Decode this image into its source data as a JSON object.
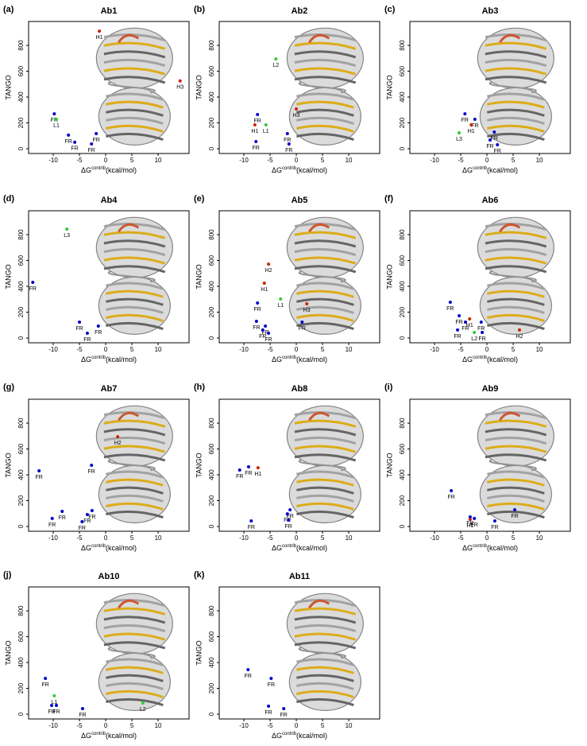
{
  "chart_data": [
    {
      "type": "scatter",
      "panel": "(a)",
      "title": "Ab1",
      "xlabel": "ΔG",
      "xlabel_sup": "contrib",
      "xlabel_unit": "(kcal/mol)",
      "ylabel": "TANGO",
      "x": [
        -1.2,
        14.2,
        -9.8,
        -9.4,
        -7.1,
        -5.9,
        -1.8,
        -2.7
      ],
      "values": [
        910,
        525,
        270,
        228,
        105,
        50,
        117,
        37
      ],
      "point_labels": [
        "H1",
        "H3",
        "FR",
        "L1",
        "FR",
        "FR",
        "FR",
        "FR"
      ],
      "point_colors": [
        "#cc2200",
        "#cc2200",
        "#0000cc",
        "#33cc33",
        "#0000cc",
        "#0000cc",
        "#0000cc",
        "#0000cc"
      ],
      "xlim": [
        -14.7,
        15.9
      ],
      "ylim": [
        -37,
        985
      ],
      "xticks": [
        -10,
        -5,
        0,
        5,
        10
      ],
      "yticks": [
        0,
        200,
        400,
        600,
        800
      ]
    },
    {
      "type": "scatter",
      "panel": "(b)",
      "title": "Ab2",
      "xlabel": "ΔG",
      "xlabel_sup": "contrib",
      "xlabel_unit": "(kcal/mol)",
      "ylabel": "TANGO",
      "x": [
        -3.9,
        0,
        -7.4,
        -7.9,
        -5.8,
        -7.7,
        -1.7,
        -1.4
      ],
      "values": [
        695,
        308,
        265,
        185,
        185,
        55,
        117,
        37
      ],
      "point_labels": [
        "L2",
        "H3",
        "FR",
        "H1",
        "L1",
        "FR",
        "FR",
        "FR"
      ],
      "point_colors": [
        "#33cc33",
        "#cc2200",
        "#0000cc",
        "#cc2200",
        "#33cc33",
        "#0000cc",
        "#0000cc",
        "#0000cc"
      ],
      "xlim": [
        -14.7,
        15.9
      ],
      "ylim": [
        -37,
        985
      ],
      "xticks": [
        -10,
        -5,
        0,
        5,
        10
      ],
      "yticks": [
        0,
        200,
        400,
        600,
        800
      ]
    },
    {
      "type": "scatter",
      "panel": "(c)",
      "title": "Ab3",
      "xlabel": "ΔG",
      "xlabel_sup": "contrib",
      "xlabel_unit": "(kcal/mol)",
      "ylabel": "TANGO",
      "x": [
        -4.2,
        -2.3,
        -3.0,
        -5.3,
        1.4,
        0.6,
        2.0
      ],
      "values": [
        270,
        228,
        185,
        123,
        129,
        68,
        31
      ],
      "point_labels": [
        "FR",
        "FR",
        "H1",
        "L3",
        "FR",
        "FR",
        "FR"
      ],
      "point_colors": [
        "#0000cc",
        "#0000cc",
        "#cc2200",
        "#33cc33",
        "#0000cc",
        "#0000cc",
        "#0000cc"
      ],
      "xlim": [
        -14.7,
        15.9
      ],
      "ylim": [
        -37,
        985
      ],
      "xticks": [
        -10,
        -5,
        0,
        5,
        10
      ],
      "yticks": [
        0,
        200,
        400,
        600,
        800
      ]
    },
    {
      "type": "scatter",
      "panel": "(d)",
      "title": "Ab4",
      "xlabel": "ΔG",
      "xlabel_sup": "contrib",
      "xlabel_unit": "(kcal/mol)",
      "ylabel": "TANGO",
      "x": [
        -7.4,
        -13.9,
        -5.0,
        -3.5,
        -1.4
      ],
      "values": [
        843,
        431,
        123,
        37,
        92
      ],
      "point_labels": [
        "L3",
        "FR",
        "FR",
        "FR",
        "FR"
      ],
      "point_colors": [
        "#33cc33",
        "#0000cc",
        "#0000cc",
        "#0000cc",
        "#0000cc"
      ],
      "xlim": [
        -14.7,
        15.9
      ],
      "ylim": [
        -37,
        985
      ],
      "xticks": [
        -10,
        -5,
        0,
        5,
        10
      ],
      "yticks": [
        0,
        200,
        400,
        600,
        800
      ]
    },
    {
      "type": "scatter",
      "panel": "(e)",
      "title": "Ab5",
      "xlabel": "ΔG",
      "xlabel_sup": "contrib",
      "xlabel_unit": "(kcal/mol)",
      "ylabel": "TANGO",
      "x": [
        -5.3,
        -6.1,
        -7.4,
        -3.0,
        2.0,
        -7.6,
        -5.9,
        -6.4,
        -5.3,
        1.1
      ],
      "values": [
        572,
        425,
        271,
        302,
        265,
        129,
        92,
        62,
        37,
        123
      ],
      "point_labels": [
        "H2",
        "H1",
        "FR",
        "L1",
        "H3",
        "FR",
        "FR",
        "FR",
        "FR",
        "FR"
      ],
      "point_colors": [
        "#cc2200",
        "#cc2200",
        "#0000cc",
        "#33cc33",
        "#cc2200",
        "#0000cc",
        "#0000cc",
        "#0000cc",
        "#0000cc",
        "#0000cc"
      ],
      "xlim": [
        -14.7,
        15.9
      ],
      "ylim": [
        -37,
        985
      ],
      "xticks": [
        -10,
        -5,
        0,
        5,
        10
      ],
      "yticks": [
        0,
        200,
        400,
        600,
        800
      ]
    },
    {
      "type": "scatter",
      "panel": "(f)",
      "title": "Ab6",
      "xlabel": "ΔG",
      "xlabel_sup": "contrib",
      "xlabel_unit": "(kcal/mol)",
      "ylabel": "TANGO",
      "x": [
        -7.0,
        -5.3,
        -3.3,
        -4.1,
        -1.1,
        -5.6,
        -2.4,
        -0.9,
        6.2
      ],
      "values": [
        277,
        172,
        148,
        123,
        123,
        62,
        43,
        43,
        62
      ],
      "point_labels": [
        "FR",
        "FR",
        "H1",
        "FR",
        "FR",
        "FR",
        "L2",
        "FR",
        "H2"
      ],
      "point_colors": [
        "#0000cc",
        "#0000cc",
        "#cc2200",
        "#0000cc",
        "#0000cc",
        "#0000cc",
        "#33cc33",
        "#0000cc",
        "#cc2200"
      ],
      "xlim": [
        -14.7,
        15.9
      ],
      "ylim": [
        -37,
        985
      ],
      "xticks": [
        -10,
        -5,
        0,
        5,
        10
      ],
      "yticks": [
        0,
        200,
        400,
        600,
        800
      ]
    },
    {
      "type": "scatter",
      "panel": "(g)",
      "title": "Ab7",
      "xlabel": "ΔG",
      "xlabel_sup": "contrib",
      "xlabel_unit": "(kcal/mol)",
      "ylabel": "TANGO",
      "x": [
        2.3,
        -12.7,
        -2.7,
        -8.3,
        -10.2,
        -3.5,
        -2.6,
        -4.5
      ],
      "values": [
        695,
        431,
        474,
        117,
        62,
        92,
        123,
        37
      ],
      "point_labels": [
        "H2",
        "FR",
        "FR",
        "FR",
        "FR",
        "FR",
        "FR",
        "FR"
      ],
      "point_colors": [
        "#cc2200",
        "#0000cc",
        "#0000cc",
        "#0000cc",
        "#0000cc",
        "#0000cc",
        "#0000cc",
        "#0000cc"
      ],
      "xlim": [
        -14.7,
        15.9
      ],
      "ylim": [
        -37,
        985
      ],
      "xticks": [
        -10,
        -5,
        0,
        5,
        10
      ],
      "yticks": [
        0,
        200,
        400,
        600,
        800
      ]
    },
    {
      "type": "scatter",
      "panel": "(h)",
      "title": "Ab8",
      "xlabel": "ΔG",
      "xlabel_sup": "contrib",
      "xlabel_unit": "(kcal/mol)",
      "ylabel": "TANGO",
      "x": [
        -10.8,
        -9.1,
        -7.3,
        -8.6,
        -1.2,
        -1.7,
        -1.5
      ],
      "values": [
        437,
        462,
        455,
        43,
        129,
        98,
        49
      ],
      "point_labels": [
        "FR",
        "FR",
        "H1",
        "FR",
        "FR",
        "FR",
        "FR"
      ],
      "point_colors": [
        "#0000cc",
        "#0000cc",
        "#cc2200",
        "#0000cc",
        "#0000cc",
        "#0000cc",
        "#0000cc"
      ],
      "xlim": [
        -14.7,
        15.9
      ],
      "ylim": [
        -37,
        985
      ],
      "xticks": [
        -10,
        -5,
        0,
        5,
        10
      ],
      "yticks": [
        0,
        200,
        400,
        600,
        800
      ]
    },
    {
      "type": "scatter",
      "panel": "(i)",
      "title": "Ab9",
      "xlabel": "ΔG",
      "xlabel_sup": "contrib",
      "xlabel_unit": "(kcal/mol)",
      "ylabel": "TANGO",
      "x": [
        -6.8,
        -3.2,
        -2.4,
        -3.2,
        1.5,
        5.3
      ],
      "values": [
        277,
        74,
        62,
        55,
        43,
        129
      ],
      "point_labels": [
        "FR",
        "FR",
        "FR",
        "H1",
        "FR",
        "FR"
      ],
      "point_colors": [
        "#0000cc",
        "#0000cc",
        "#0000cc",
        "#cc2200",
        "#0000cc",
        "#0000cc"
      ],
      "xlim": [
        -14.7,
        15.9
      ],
      "ylim": [
        -37,
        985
      ],
      "xticks": [
        -10,
        -5,
        0,
        5,
        10
      ],
      "yticks": [
        0,
        200,
        400,
        600,
        800
      ]
    },
    {
      "type": "scatter",
      "panel": "(j)",
      "title": "Ab10",
      "xlabel": "ΔG",
      "xlabel_sup": "contrib",
      "xlabel_unit": "(kcal/mol)",
      "ylabel": "TANGO",
      "x": [
        -11.5,
        -9.8,
        -10.3,
        -9.4,
        -4.4,
        7.1
      ],
      "values": [
        277,
        142,
        68,
        68,
        43,
        86
      ],
      "point_labels": [
        "FR",
        "L1",
        "FR",
        "FR",
        "FR",
        "L2"
      ],
      "point_colors": [
        "#0000cc",
        "#33cc33",
        "#0000cc",
        "#0000cc",
        "#0000cc",
        "#33cc33"
      ],
      "xlim": [
        -14.7,
        15.9
      ],
      "ylim": [
        -37,
        985
      ],
      "xticks": [
        -10,
        -5,
        0,
        5,
        10
      ],
      "yticks": [
        0,
        200,
        400,
        600,
        800
      ]
    },
    {
      "type": "scatter",
      "panel": "(k)",
      "title": "Ab11",
      "xlabel": "ΔG",
      "xlabel_sup": "contrib",
      "xlabel_unit": "(kcal/mol)",
      "ylabel": "TANGO",
      "x": [
        -9.2,
        -4.8,
        -5.3,
        -2.4
      ],
      "values": [
        345,
        277,
        62,
        43
      ],
      "point_labels": [
        "FR",
        "FR",
        "FR",
        "FR"
      ],
      "point_colors": [
        "#0000cc",
        "#0000cc",
        "#0000cc",
        "#0000cc"
      ],
      "xlim": [
        -14.7,
        15.9
      ],
      "ylim": [
        -37,
        985
      ],
      "xticks": [
        -10,
        -5,
        0,
        5,
        10
      ],
      "yticks": [
        0,
        200,
        400,
        600,
        800
      ]
    }
  ]
}
